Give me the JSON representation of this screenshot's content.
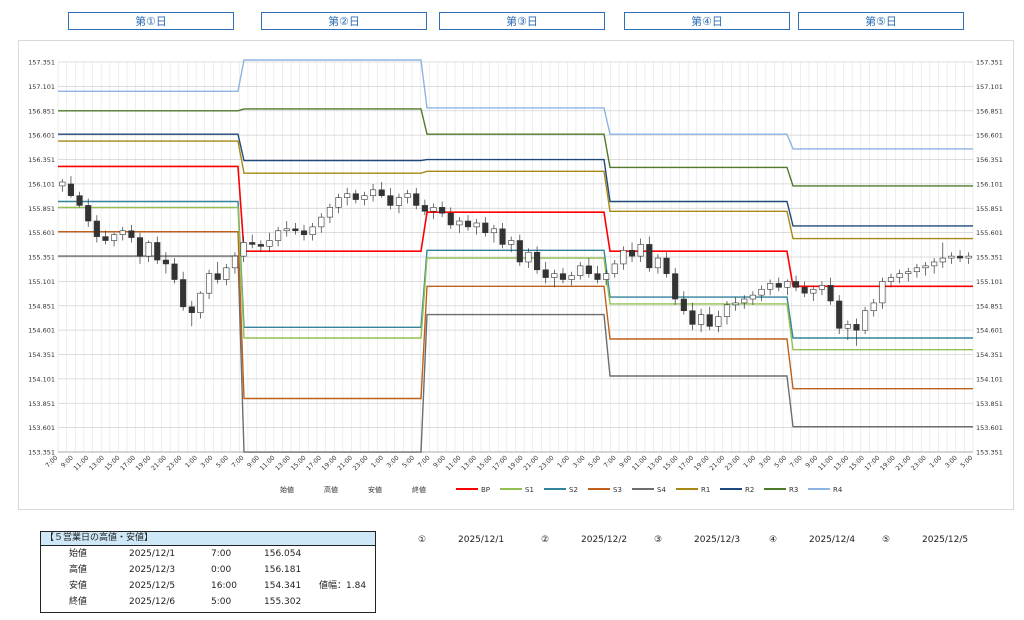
{
  "days": [
    "第①日",
    "第②日",
    "第③日",
    "第④日",
    "第⑤日"
  ],
  "chart_data": {
    "type": "line",
    "description": "candlestick",
    "y_ticks": [
      "157.351",
      "157.101",
      "156.851",
      "156.601",
      "156.351",
      "156.101",
      "155.851",
      "155.601",
      "155.351",
      "155.101",
      "154.851",
      "154.601",
      "154.351",
      "154.101",
      "153.851",
      "153.601",
      "153.351"
    ],
    "ylim": [
      153.351,
      157.351
    ],
    "x_ticks": [
      "7:00",
      "9:00",
      "11:00",
      "13:00",
      "15:00",
      "17:00",
      "19:00",
      "21:00",
      "23:00",
      "1:00",
      "3:00",
      "5:00",
      "7:00",
      "9:00",
      "11:00",
      "13:00",
      "15:00",
      "17:00",
      "19:00",
      "21:00",
      "23:00",
      "1:00",
      "3:00",
      "5:00",
      "7:00",
      "9:00",
      "11:00",
      "13:00",
      "15:00",
      "17:00",
      "19:00",
      "21:00",
      "23:00",
      "1:00",
      "3:00",
      "5:00",
      "7:00",
      "9:00",
      "11:00",
      "13:00",
      "15:00",
      "17:00",
      "19:00",
      "21:00",
      "23:00",
      "1:00",
      "3:00",
      "5:00",
      "7:00",
      "9:00",
      "11:00",
      "13:00",
      "15:00",
      "17:00",
      "19:00",
      "21:00",
      "23:00",
      "1:00",
      "3:00",
      "5:00"
    ],
    "legend": [
      {
        "name": "始値",
        "color": ""
      },
      {
        "name": "高値",
        "color": ""
      },
      {
        "name": "安値",
        "color": ""
      },
      {
        "name": "終値",
        "color": ""
      },
      {
        "name": "BP",
        "color": "#ff0000"
      },
      {
        "name": "S1",
        "color": "#92c050"
      },
      {
        "name": "S2",
        "color": "#31849b"
      },
      {
        "name": "S3",
        "color": "#c0601a"
      },
      {
        "name": "S4",
        "color": "#6d6d6d"
      },
      {
        "name": "R1",
        "color": "#a88814"
      },
      {
        "name": "R2",
        "color": "#1f497d"
      },
      {
        "name": "R3",
        "color": "#4f7a28"
      },
      {
        "name": "R4",
        "color": "#8db4e2"
      }
    ],
    "levels": {
      "R4": [
        157.05,
        157.45,
        156.88,
        156.61,
        156.46
      ],
      "R3": [
        156.85,
        156.87,
        156.61,
        156.27,
        156.08
      ],
      "R2": [
        156.61,
        156.34,
        156.35,
        155.92,
        155.67
      ],
      "R1": [
        156.54,
        156.21,
        156.23,
        155.82,
        155.54
      ],
      "BP": [
        156.28,
        155.41,
        155.81,
        155.41,
        155.05
      ],
      "S1": [
        155.86,
        154.52,
        155.34,
        154.87,
        154.4
      ],
      "S2": [
        155.92,
        154.63,
        155.42,
        154.94,
        154.52
      ],
      "S3": [
        155.61,
        153.9,
        155.05,
        154.51,
        154.0
      ],
      "S4": [
        155.36,
        153.35,
        154.76,
        154.13,
        153.61
      ]
    },
    "candles": [
      [
        156.08,
        156.15,
        156.02,
        156.12
      ],
      [
        156.1,
        156.18,
        155.96,
        155.98
      ],
      [
        155.98,
        156.02,
        155.86,
        155.88
      ],
      [
        155.88,
        155.95,
        155.66,
        155.72
      ],
      [
        155.72,
        155.78,
        155.5,
        155.56
      ],
      [
        155.56,
        155.62,
        155.48,
        155.52
      ],
      [
        155.52,
        155.6,
        155.46,
        155.58
      ],
      [
        155.58,
        155.66,
        155.52,
        155.62
      ],
      [
        155.62,
        155.68,
        155.5,
        155.55
      ],
      [
        155.55,
        155.6,
        155.28,
        155.36
      ],
      [
        155.36,
        155.52,
        155.3,
        155.5
      ],
      [
        155.5,
        155.56,
        155.28,
        155.32
      ],
      [
        155.32,
        155.4,
        155.18,
        155.28
      ],
      [
        155.28,
        155.34,
        155.08,
        155.12
      ],
      [
        155.12,
        155.2,
        154.8,
        154.84
      ],
      [
        154.84,
        154.9,
        154.64,
        154.78
      ],
      [
        154.78,
        155.0,
        154.72,
        154.98
      ],
      [
        154.98,
        155.22,
        154.92,
        155.18
      ],
      [
        155.18,
        155.3,
        155.08,
        155.12
      ],
      [
        155.12,
        155.28,
        155.06,
        155.24
      ],
      [
        155.24,
        155.4,
        155.18,
        155.36
      ],
      [
        155.36,
        155.56,
        155.3,
        155.5
      ],
      [
        155.5,
        155.58,
        155.44,
        155.48
      ],
      [
        155.48,
        155.52,
        155.4,
        155.46
      ],
      [
        155.46,
        155.6,
        155.4,
        155.52
      ],
      [
        155.52,
        155.66,
        155.46,
        155.62
      ],
      [
        155.62,
        155.72,
        155.56,
        155.64
      ],
      [
        155.64,
        155.7,
        155.58,
        155.62
      ],
      [
        155.62,
        155.68,
        155.52,
        155.58
      ],
      [
        155.58,
        155.7,
        155.52,
        155.66
      ],
      [
        155.66,
        155.8,
        155.6,
        155.76
      ],
      [
        155.76,
        155.9,
        155.7,
        155.86
      ],
      [
        155.86,
        156.0,
        155.8,
        155.96
      ],
      [
        155.96,
        156.06,
        155.88,
        156.0
      ],
      [
        156.0,
        156.04,
        155.9,
        155.94
      ],
      [
        155.94,
        156.02,
        155.88,
        155.98
      ],
      [
        155.98,
        156.1,
        155.92,
        156.04
      ],
      [
        156.04,
        156.12,
        155.96,
        155.98
      ],
      [
        155.98,
        156.06,
        155.84,
        155.88
      ],
      [
        155.88,
        156.0,
        155.8,
        155.96
      ],
      [
        155.96,
        156.04,
        155.9,
        156.0
      ],
      [
        156.0,
        156.06,
        155.84,
        155.88
      ],
      [
        155.88,
        155.94,
        155.78,
        155.82
      ],
      [
        155.82,
        155.9,
        155.74,
        155.86
      ],
      [
        155.86,
        155.92,
        155.76,
        155.8
      ],
      [
        155.8,
        155.86,
        155.64,
        155.68
      ],
      [
        155.68,
        155.76,
        155.6,
        155.72
      ],
      [
        155.72,
        155.78,
        155.62,
        155.66
      ],
      [
        155.66,
        155.74,
        155.58,
        155.7
      ],
      [
        155.7,
        155.76,
        155.56,
        155.6
      ],
      [
        155.6,
        155.68,
        155.5,
        155.64
      ],
      [
        155.64,
        155.7,
        155.44,
        155.48
      ],
      [
        155.48,
        155.56,
        155.4,
        155.52
      ],
      [
        155.52,
        155.58,
        155.26,
        155.3
      ],
      [
        155.3,
        155.44,
        155.24,
        155.4
      ],
      [
        155.4,
        155.46,
        155.18,
        155.22
      ],
      [
        155.22,
        155.3,
        155.08,
        155.14
      ],
      [
        155.14,
        155.22,
        155.04,
        155.18
      ],
      [
        155.18,
        155.24,
        155.08,
        155.12
      ],
      [
        155.12,
        155.2,
        155.06,
        155.16
      ],
      [
        155.16,
        155.3,
        155.12,
        155.26
      ],
      [
        155.26,
        155.34,
        155.14,
        155.18
      ],
      [
        155.18,
        155.26,
        155.08,
        155.12
      ],
      [
        155.12,
        155.22,
        155.06,
        155.18
      ],
      [
        155.18,
        155.32,
        155.14,
        155.28
      ],
      [
        155.28,
        155.46,
        155.22,
        155.42
      ],
      [
        155.42,
        155.5,
        155.3,
        155.36
      ],
      [
        155.36,
        155.54,
        155.3,
        155.48
      ],
      [
        155.48,
        155.56,
        155.2,
        155.24
      ],
      [
        155.24,
        155.38,
        155.18,
        155.34
      ],
      [
        155.34,
        155.4,
        155.14,
        155.18
      ],
      [
        155.18,
        155.24,
        154.86,
        154.92
      ],
      [
        154.92,
        155.0,
        154.76,
        154.8
      ],
      [
        154.8,
        154.88,
        154.6,
        154.66
      ],
      [
        154.66,
        154.82,
        154.58,
        154.76
      ],
      [
        154.76,
        154.84,
        154.6,
        154.64
      ],
      [
        154.64,
        154.8,
        154.58,
        154.74
      ],
      [
        154.74,
        154.9,
        154.66,
        154.86
      ],
      [
        154.86,
        154.94,
        154.8,
        154.88
      ],
      [
        154.88,
        154.96,
        154.82,
        154.92
      ],
      [
        154.92,
        155.0,
        154.86,
        154.96
      ],
      [
        154.96,
        155.06,
        154.9,
        155.02
      ],
      [
        155.02,
        155.12,
        154.96,
        155.08
      ],
      [
        155.08,
        155.14,
        155.0,
        155.04
      ],
      [
        155.04,
        155.12,
        154.96,
        155.1
      ],
      [
        155.1,
        155.16,
        155.0,
        155.04
      ],
      [
        155.04,
        155.1,
        154.94,
        154.98
      ],
      [
        154.98,
        155.06,
        154.9,
        155.02
      ],
      [
        155.02,
        155.1,
        154.96,
        155.06
      ],
      [
        155.06,
        155.14,
        154.86,
        154.9
      ],
      [
        154.9,
        154.96,
        154.56,
        154.62
      ],
      [
        154.62,
        154.7,
        154.5,
        154.66
      ],
      [
        154.66,
        154.72,
        154.44,
        154.6
      ],
      [
        154.6,
        154.84,
        154.56,
        154.8
      ],
      [
        154.8,
        154.92,
        154.74,
        154.88
      ],
      [
        154.88,
        155.14,
        154.82,
        155.1
      ],
      [
        155.1,
        155.18,
        155.04,
        155.14
      ],
      [
        155.14,
        155.22,
        155.08,
        155.18
      ],
      [
        155.18,
        155.24,
        155.1,
        155.2
      ],
      [
        155.2,
        155.28,
        155.14,
        155.24
      ],
      [
        155.24,
        155.3,
        155.16,
        155.26
      ],
      [
        155.26,
        155.34,
        155.18,
        155.3
      ],
      [
        155.3,
        155.5,
        155.24,
        155.34
      ],
      [
        155.34,
        155.4,
        155.28,
        155.36
      ],
      [
        155.36,
        155.42,
        155.3,
        155.34
      ],
      [
        155.34,
        155.4,
        155.28,
        155.36
      ]
    ]
  },
  "summary": {
    "title": "【５営業日の高値・安値】",
    "rows": [
      {
        "label": "始値",
        "date": "2025/12/1",
        "time": "7:00",
        "value": "156.054",
        "extra": ""
      },
      {
        "label": "高値",
        "date": "2025/12/3",
        "time": "0:00",
        "value": "156.181",
        "extra": ""
      },
      {
        "label": "安値",
        "date": "2025/12/5",
        "time": "16:00",
        "value": "154.341",
        "extra": "値幅：1.84"
      },
      {
        "label": "終値",
        "date": "2025/12/6",
        "time": "5:00",
        "value": "155.302",
        "extra": ""
      }
    ]
  },
  "day_dates": [
    {
      "mark": "①",
      "date": "2025/12/1"
    },
    {
      "mark": "②",
      "date": "2025/12/2"
    },
    {
      "mark": "③",
      "date": "2025/12/3"
    },
    {
      "mark": "④",
      "date": "2025/12/4"
    },
    {
      "mark": "⑤",
      "date": "2025/12/5"
    }
  ]
}
